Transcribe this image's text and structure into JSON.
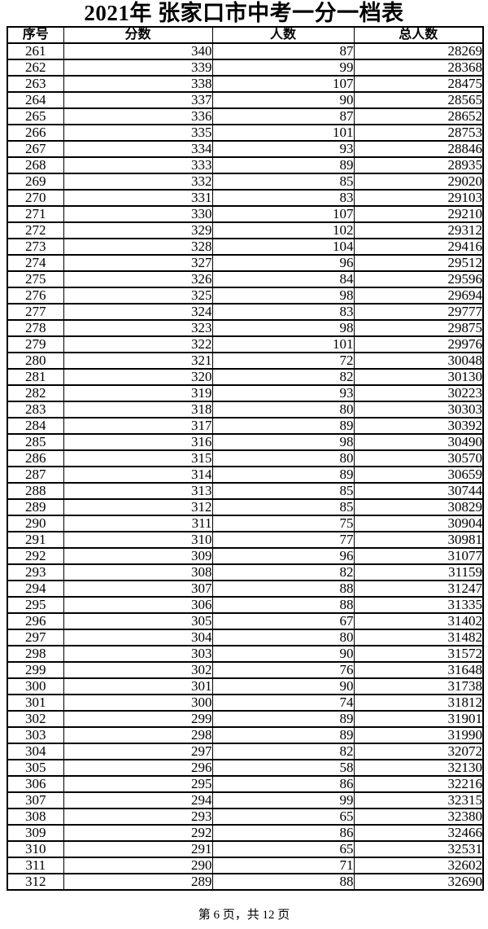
{
  "title": "2021年 张家口市中考一分一档表",
  "table": {
    "headers": [
      "序号",
      "分数",
      "人数",
      "总人数"
    ],
    "rows": [
      [
        261,
        340,
        87,
        28269
      ],
      [
        262,
        339,
        99,
        28368
      ],
      [
        263,
        338,
        107,
        28475
      ],
      [
        264,
        337,
        90,
        28565
      ],
      [
        265,
        336,
        87,
        28652
      ],
      [
        266,
        335,
        101,
        28753
      ],
      [
        267,
        334,
        93,
        28846
      ],
      [
        268,
        333,
        89,
        28935
      ],
      [
        269,
        332,
        85,
        29020
      ],
      [
        270,
        331,
        83,
        29103
      ],
      [
        271,
        330,
        107,
        29210
      ],
      [
        272,
        329,
        102,
        29312
      ],
      [
        273,
        328,
        104,
        29416
      ],
      [
        274,
        327,
        96,
        29512
      ],
      [
        275,
        326,
        84,
        29596
      ],
      [
        276,
        325,
        98,
        29694
      ],
      [
        277,
        324,
        83,
        29777
      ],
      [
        278,
        323,
        98,
        29875
      ],
      [
        279,
        322,
        101,
        29976
      ],
      [
        280,
        321,
        72,
        30048
      ],
      [
        281,
        320,
        82,
        30130
      ],
      [
        282,
        319,
        93,
        30223
      ],
      [
        283,
        318,
        80,
        30303
      ],
      [
        284,
        317,
        89,
        30392
      ],
      [
        285,
        316,
        98,
        30490
      ],
      [
        286,
        315,
        80,
        30570
      ],
      [
        287,
        314,
        89,
        30659
      ],
      [
        288,
        313,
        85,
        30744
      ],
      [
        289,
        312,
        85,
        30829
      ],
      [
        290,
        311,
        75,
        30904
      ],
      [
        291,
        310,
        77,
        30981
      ],
      [
        292,
        309,
        96,
        31077
      ],
      [
        293,
        308,
        82,
        31159
      ],
      [
        294,
        307,
        88,
        31247
      ],
      [
        295,
        306,
        88,
        31335
      ],
      [
        296,
        305,
        67,
        31402
      ],
      [
        297,
        304,
        80,
        31482
      ],
      [
        298,
        303,
        90,
        31572
      ],
      [
        299,
        302,
        76,
        31648
      ],
      [
        300,
        301,
        90,
        31738
      ],
      [
        301,
        300,
        74,
        31812
      ],
      [
        302,
        299,
        89,
        31901
      ],
      [
        303,
        298,
        89,
        31990
      ],
      [
        304,
        297,
        82,
        32072
      ],
      [
        305,
        296,
        58,
        32130
      ],
      [
        306,
        295,
        86,
        32216
      ],
      [
        307,
        294,
        99,
        32315
      ],
      [
        308,
        293,
        65,
        32380
      ],
      [
        309,
        292,
        86,
        32466
      ],
      [
        310,
        291,
        65,
        32531
      ],
      [
        311,
        290,
        71,
        32602
      ],
      [
        312,
        289,
        88,
        32690
      ]
    ]
  },
  "footer": {
    "text": "第 6 页，共 12 页"
  },
  "colors": {
    "border": "#000000",
    "text": "#000000",
    "background": "#ffffff"
  }
}
